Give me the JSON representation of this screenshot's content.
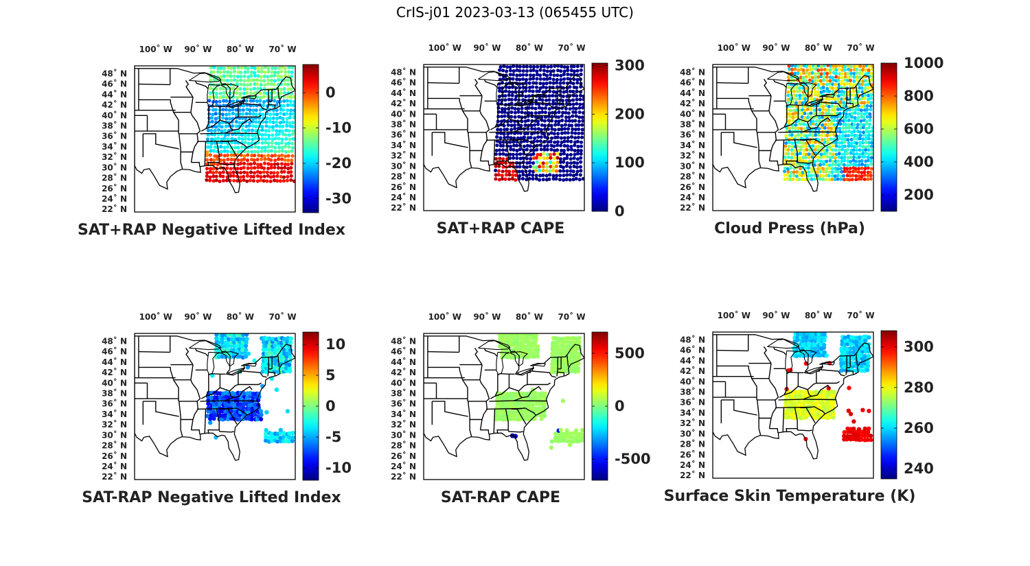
{
  "figure": {
    "title": "CrIS-j01 2023-03-13 (065455 UTC)"
  },
  "axes": {
    "lon_labels": [
      "100˚ W",
      "90˚ W",
      "80˚ W",
      "70˚ W"
    ],
    "lon_values": [
      -100,
      -90,
      -80,
      -70
    ],
    "lat_labels": [
      "48˚ N",
      "46˚ N",
      "44˚ N",
      "42˚ N",
      "40˚ N",
      "38˚ N",
      "36˚ N",
      "34˚ N",
      "32˚ N",
      "30˚ N",
      "28˚ N",
      "26˚ N",
      "24˚ N",
      "22˚ N"
    ],
    "lat_values": [
      48,
      46,
      44,
      42,
      40,
      38,
      36,
      34,
      32,
      30,
      28,
      26,
      24,
      22
    ],
    "lon_range": [
      -105,
      -67
    ],
    "lat_range": [
      21.5,
      49.5
    ],
    "colormap": "jet"
  },
  "panels": [
    {
      "id": "sat-rap-neg-lifted-index",
      "title": "SAT+RAP Negative Lifted Index",
      "colorbar": {
        "range": [
          -34,
          8
        ],
        "ticks": [
          0,
          -10,
          -20,
          -30
        ],
        "tick_labels": [
          "0",
          "-10",
          "-20",
          "-30"
        ]
      },
      "coverage": "full-swath",
      "pattern": "lifted",
      "swath_bounds": {
        "west": -88,
        "east": -67.2,
        "south": 27.5,
        "north": 49.5
      }
    },
    {
      "id": "sat-rap-cape",
      "title": "SAT+RAP CAPE",
      "colorbar": {
        "range": [
          0,
          305
        ],
        "ticks": [
          300,
          200,
          100,
          0
        ],
        "tick_labels": [
          "300",
          "200",
          "100",
          "0"
        ]
      },
      "coverage": "full-swath",
      "pattern": "cape",
      "swath_bounds": {
        "west": -88,
        "east": -67.2,
        "south": 27.5,
        "north": 49.5
      }
    },
    {
      "id": "cloud-press",
      "title": "Cloud Press (hPa)",
      "colorbar": {
        "range": [
          100,
          1000
        ],
        "ticks": [
          1000,
          800,
          600,
          400,
          200
        ],
        "tick_labels": [
          "1000",
          "800",
          "600",
          "400",
          "200"
        ]
      },
      "coverage": "full-swath",
      "pattern": "cloud",
      "swath_bounds": {
        "west": -88,
        "east": -67.2,
        "south": 27.5,
        "north": 49.5
      }
    },
    {
      "id": "sat-minus-rap-neg-lifted-index",
      "title": "SAT-RAP Negative Lifted Index",
      "colorbar": {
        "range": [
          -12,
          12
        ],
        "ticks": [
          10,
          5,
          0,
          -5,
          -10
        ],
        "tick_labels": [
          "10",
          "5",
          "0",
          "-5",
          "-10"
        ]
      },
      "coverage": "partial",
      "pattern": "difflift",
      "swath_bounds": {
        "west": -88,
        "east": -67.2,
        "south": 27.5,
        "north": 49.5
      }
    },
    {
      "id": "sat-minus-rap-cape",
      "title": "SAT-RAP CAPE",
      "colorbar": {
        "range": [
          -700,
          700
        ],
        "ticks": [
          500,
          0,
          -500
        ],
        "tick_labels": [
          "500",
          "0",
          "-500"
        ]
      },
      "coverage": "partial",
      "pattern": "diffcape",
      "swath_bounds": {
        "west": -88,
        "east": -67.2,
        "south": 27.5,
        "north": 49.5
      }
    },
    {
      "id": "surface-skin-temperature",
      "title": "Surface Skin Temperature (K)",
      "colorbar": {
        "range": [
          235,
          308
        ],
        "ticks": [
          300,
          280,
          260,
          240
        ],
        "tick_labels": [
          "300",
          "280",
          "260",
          "240"
        ]
      },
      "coverage": "partial",
      "pattern": "skin",
      "swath_bounds": {
        "west": -88,
        "east": -67.2,
        "south": 27.5,
        "north": 49.5
      }
    }
  ]
}
